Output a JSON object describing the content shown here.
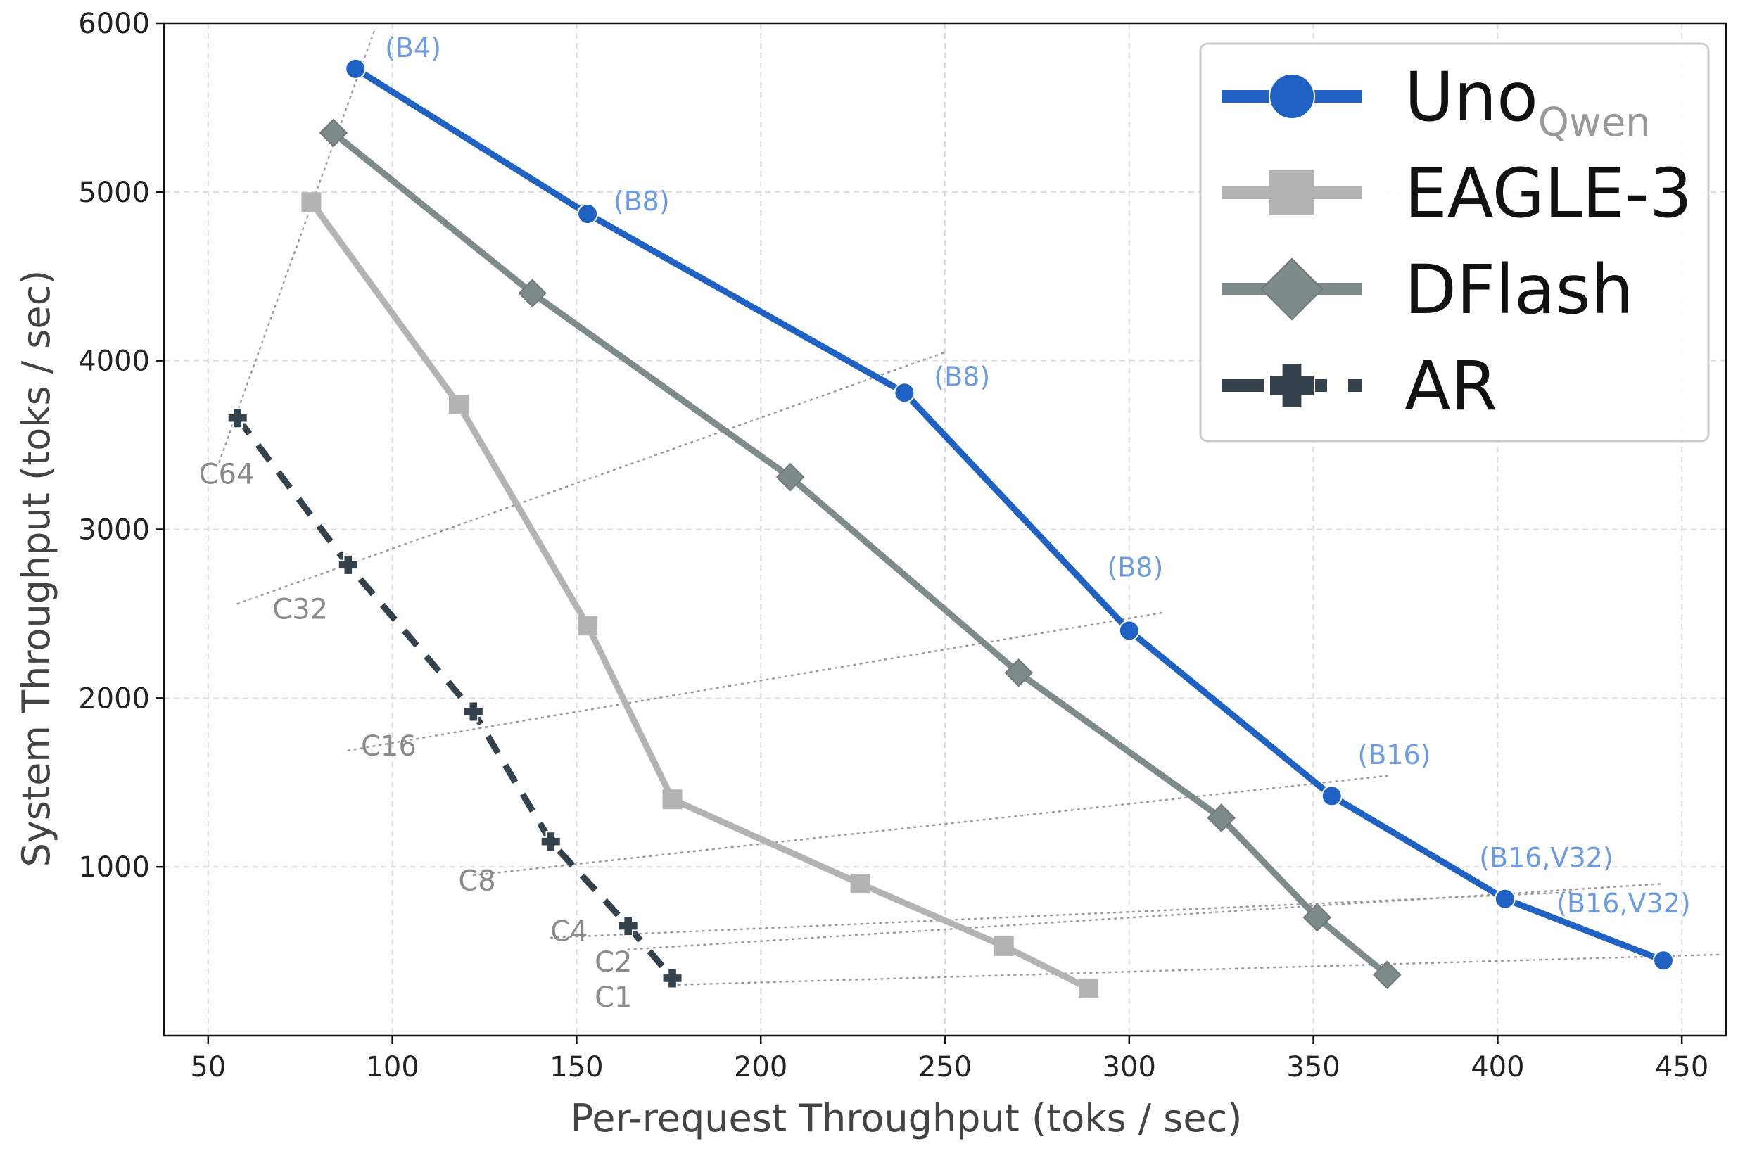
{
  "colors": {
    "uno": "#1f62c4",
    "eagle": "#b3b3b3",
    "dflash": "#7f8a8a",
    "ar": "#34424d",
    "blue_annotation": "#6c9be3",
    "gray_annotation": "#8a8a8a",
    "grid": "#dddddd"
  },
  "chart_data": {
    "type": "line",
    "xlabel": "Per-request Throughput (toks / sec)",
    "ylabel": "System Throughput (toks / sec)",
    "xlim": [
      38,
      462
    ],
    "ylim": [
      0,
      6000
    ],
    "xticks": [
      50,
      100,
      150,
      200,
      250,
      300,
      350,
      400,
      450
    ],
    "yticks": [
      1000,
      2000,
      3000,
      4000,
      5000,
      6000
    ],
    "grid": true,
    "legend_position": "top-right",
    "series": [
      {
        "key": "uno",
        "name": "Uno",
        "name_subscript": "Qwen",
        "marker": "circle",
        "line": "solid",
        "color": "#1f62c4",
        "points": [
          [
            90,
            5730
          ],
          [
            153,
            4870
          ],
          [
            239,
            3810
          ],
          [
            300,
            2400
          ],
          [
            355,
            1420
          ],
          [
            402,
            810
          ],
          [
            445,
            445
          ]
        ]
      },
      {
        "key": "eagle",
        "name": "EAGLE-3",
        "marker": "square",
        "line": "solid",
        "color": "#b3b3b3",
        "points": [
          [
            78,
            4940
          ],
          [
            118,
            3740
          ],
          [
            153,
            2430
          ],
          [
            176,
            1400
          ],
          [
            227,
            900
          ],
          [
            266,
            530
          ],
          [
            289,
            280
          ]
        ]
      },
      {
        "key": "dflash",
        "name": "DFlash",
        "marker": "diamond",
        "line": "solid",
        "color": "#7f8a8a",
        "points": [
          [
            84,
            5350
          ],
          [
            138,
            4400
          ],
          [
            208,
            3310
          ],
          [
            270,
            2150
          ],
          [
            325,
            1290
          ],
          [
            351,
            700
          ],
          [
            370,
            360
          ]
        ]
      },
      {
        "key": "ar",
        "name": "AR",
        "marker": "plus",
        "line": "dashed",
        "color": "#34424d",
        "points": [
          [
            58,
            3660
          ],
          [
            88,
            2790
          ],
          [
            122,
            1920
          ],
          [
            143,
            1150
          ],
          [
            164,
            650
          ],
          [
            176,
            340
          ]
        ]
      }
    ],
    "concurrency_lines": [
      {
        "label": "C1",
        "from": [
          176,
          300
        ],
        "to": [
          460,
          480
        ]
      },
      {
        "label": "C2",
        "from": [
          164,
          510
        ],
        "to": [
          445,
          900
        ]
      },
      {
        "label": "C4",
        "from": [
          143,
          580
        ],
        "to": [
          420,
          850
        ]
      },
      {
        "label": "C8",
        "from": [
          122,
          950
        ],
        "to": [
          370,
          1540
        ]
      },
      {
        "label": "C16",
        "from": [
          88,
          1690
        ],
        "to": [
          310,
          2510
        ]
      },
      {
        "label": "C32",
        "from": [
          58,
          2560
        ],
        "to": [
          250,
          4050
        ]
      },
      {
        "label": "C64",
        "from": [
          53,
          3400
        ],
        "to": [
          95,
          5950
        ]
      }
    ],
    "concurrency_labels": [
      {
        "text": "C1",
        "at": [
          160,
          170
        ]
      },
      {
        "text": "C2",
        "at": [
          160,
          380
        ]
      },
      {
        "text": "C4",
        "at": [
          148,
          560
        ]
      },
      {
        "text": "C8",
        "at": [
          123,
          860
        ]
      },
      {
        "text": "C16",
        "at": [
          99,
          1660
        ]
      },
      {
        "text": "C32",
        "at": [
          75,
          2470
        ]
      },
      {
        "text": "C64",
        "at": [
          55,
          3270
        ]
      }
    ],
    "uno_annotations": [
      {
        "text": "(B4)",
        "at": [
          98,
          5800
        ]
      },
      {
        "text": "(B8)",
        "at": [
          160,
          4890
        ]
      },
      {
        "text": "(B8)",
        "at": [
          247,
          3850
        ]
      },
      {
        "text": "(B8)",
        "at": [
          294,
          2720
        ]
      },
      {
        "text": "(B16)",
        "at": [
          362,
          1610
        ]
      },
      {
        "text": "(B16,V32)",
        "at": [
          395,
          1000
        ]
      },
      {
        "text": "(B16,V32)",
        "at": [
          416,
          730
        ]
      }
    ]
  }
}
